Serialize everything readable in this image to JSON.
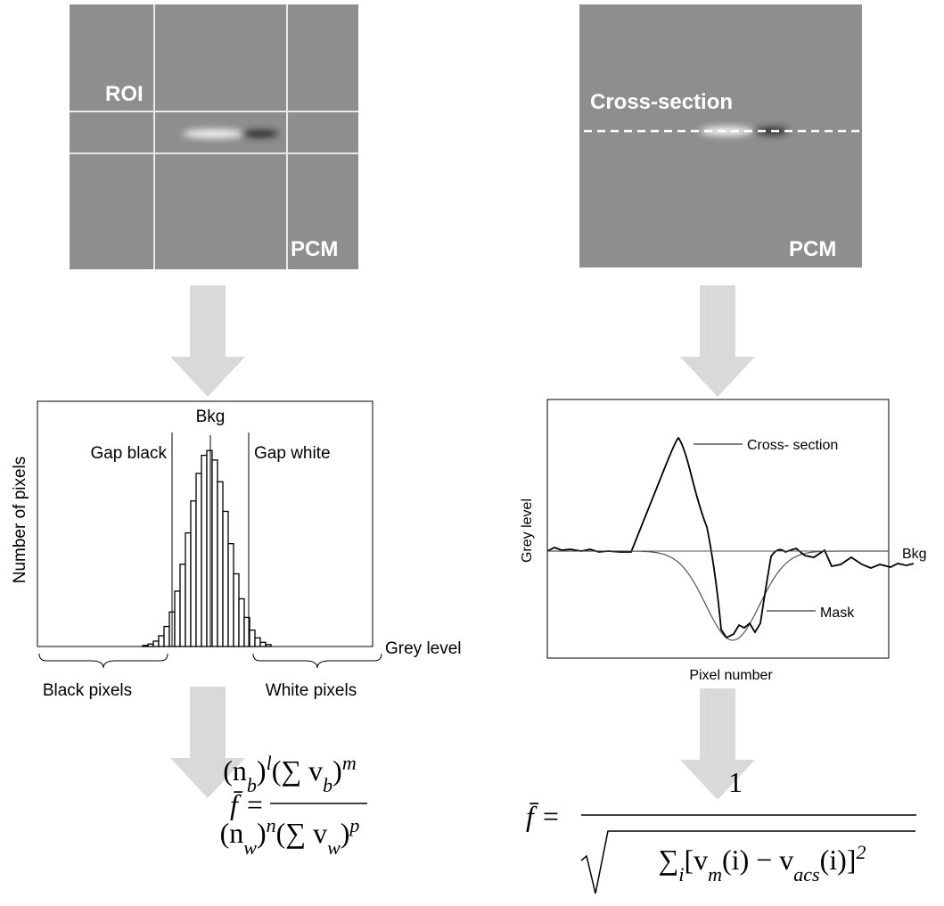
{
  "left_panel": {
    "roi_label": "ROI",
    "pcm_label": "PCM"
  },
  "right_panel": {
    "cross_section_label": "Cross-section",
    "pcm_label": "PCM"
  },
  "histogram": {
    "y_label": "Number of pixels",
    "x_label": "Grey level",
    "bkg_label": "Bkg",
    "gap_black_label": "Gap black",
    "gap_white_label": "Gap white",
    "black_pixels_label": "Black pixels",
    "white_pixels_label": "White pixels"
  },
  "profile": {
    "y_label": "Grey level",
    "x_label": "Pixel number",
    "cross_section_label": "Cross- section",
    "bkg_label": "Bkg",
    "mask_label": "Mask"
  },
  "left_formula": {
    "lhs": [
      {
        "text": "f̄ ="
      }
    ],
    "numerator": [
      {
        "text": "(n"
      },
      {
        "sub": "b"
      },
      {
        "text": ")"
      },
      {
        "sup": "l"
      },
      {
        "text": "(∑ v"
      },
      {
        "sub": "b"
      },
      {
        "text": ")"
      },
      {
        "sup": "m"
      }
    ],
    "denominator": [
      {
        "text": "(n"
      },
      {
        "sub": "w"
      },
      {
        "text": ")"
      },
      {
        "sup": "n"
      },
      {
        "text": "(∑ v"
      },
      {
        "sub": "w"
      },
      {
        "text": ")"
      },
      {
        "sup": "p"
      }
    ]
  },
  "right_formula": {
    "lhs": [
      {
        "text": "f̄ ="
      }
    ],
    "numerator": [
      {
        "text": "1"
      }
    ],
    "denominator": [
      {
        "text": "∑"
      },
      {
        "sub": "i"
      },
      {
        "text": "[v"
      },
      {
        "sub": "m"
      },
      {
        "text": "(i) − v"
      },
      {
        "sub": "acs"
      },
      {
        "text": "(i)]"
      },
      {
        "sup": "2"
      }
    ]
  }
}
